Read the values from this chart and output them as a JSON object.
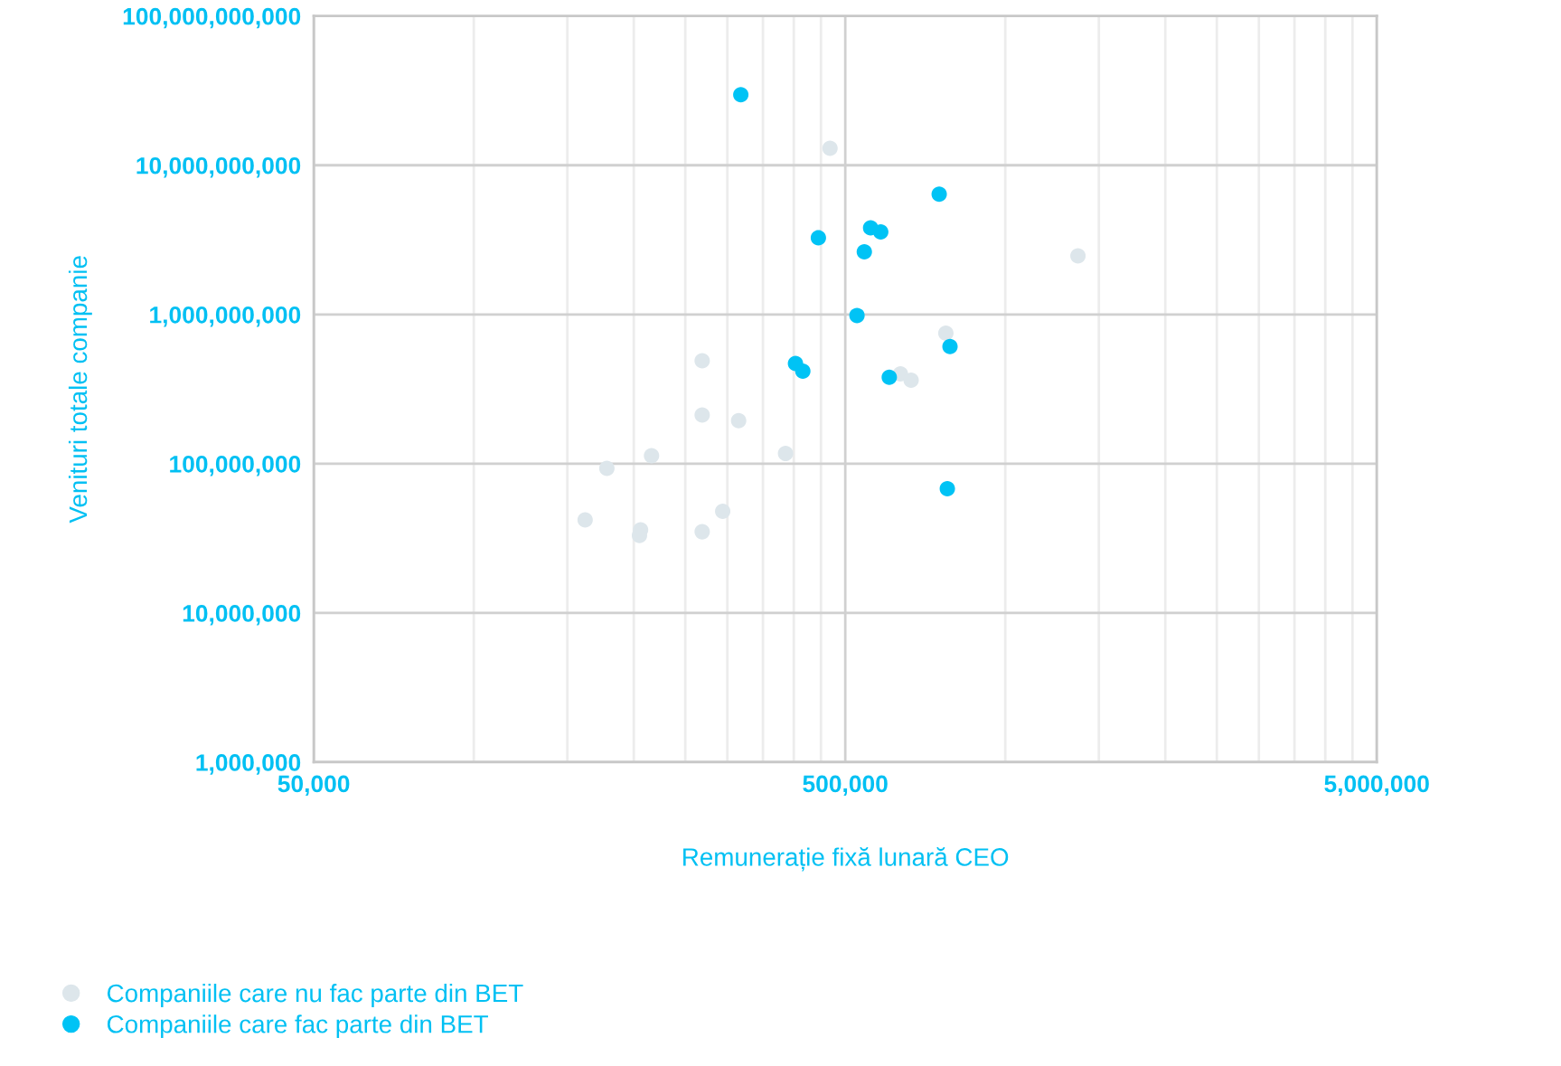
{
  "chart_data": {
    "type": "scatter",
    "xlabel": "Remunerație fixă lunară CEO",
    "ylabel": "Venituri totale companie",
    "log": "xy",
    "grid": true,
    "legend": "bottom left",
    "marker": "circle",
    "xlim": [
      50000,
      5000000
    ],
    "xticks": [
      {
        "value": 50000,
        "label": "50,000"
      },
      {
        "value": 500000,
        "label": "500,000"
      },
      {
        "value": 5000000,
        "label": "5,000,000"
      }
    ],
    "ylim": [
      1000000,
      100000000000
    ],
    "yticks": [
      {
        "value": 1000000,
        "label": "1,000,000"
      },
      {
        "value": 10000000,
        "label": "10,000,000"
      },
      {
        "value": 100000000,
        "label": "100,000,000"
      },
      {
        "value": 1000000000,
        "label": "1,000,000,000"
      },
      {
        "value": 10000000000,
        "label": "10,000,000,000"
      },
      {
        "value": 100000000000,
        "label": "100,000,000,000"
      }
    ],
    "series": [
      {
        "name": "Companiile care nu fac parte din BET",
        "color": "#dde6eb",
        "x": [
          468000,
          1370000,
          773000,
          635000,
          665000,
          269000,
          269000,
          315000,
          386000,
          216000,
          178000,
          162000,
          206000,
          205000,
          269000,
          294000
        ],
        "values": [
          13000000000,
          2470000000,
          750000000,
          400000000,
          363000000,
          490000000,
          212000000,
          194000000,
          117000000,
          113000000,
          93000000,
          42000000,
          36000000,
          33000000,
          35000000,
          48000000
        ]
      },
      {
        "name": "Companiile care fac parte din BET",
        "color": "#00c3f5",
        "x": [
          318000,
          751000,
          445000,
          558000,
          583000,
          543000,
          526000,
          403000,
          416000,
          605000,
          787000,
          778000
        ],
        "values": [
          29700000000,
          6400000000,
          3260000000,
          3800000000,
          3570000000,
          2630000000,
          985000000,
          470000000,
          417000000,
          380000000,
          610000000,
          68000000
        ]
      }
    ]
  }
}
